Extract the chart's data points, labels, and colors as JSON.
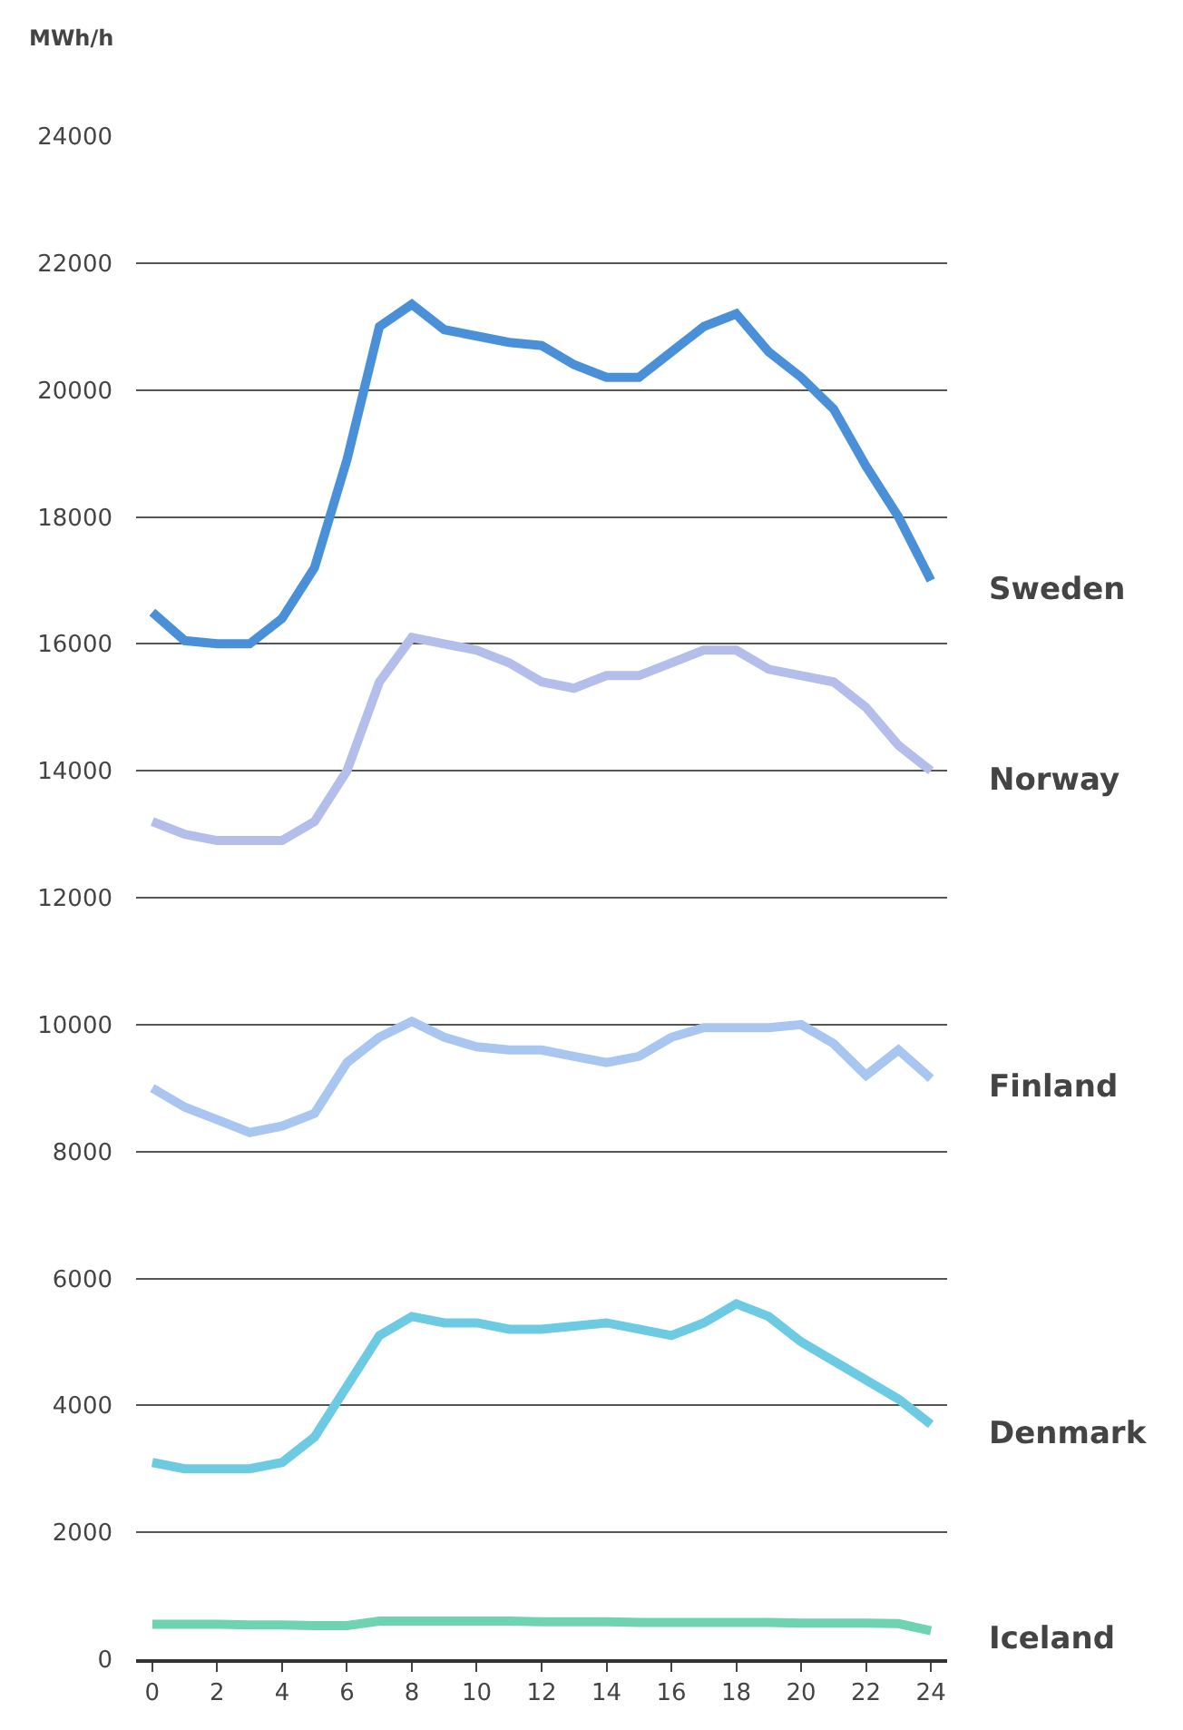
{
  "chart_data": {
    "type": "line",
    "ylabel": "MWh/h",
    "x": [
      0,
      1,
      2,
      3,
      4,
      5,
      6,
      7,
      8,
      9,
      10,
      11,
      12,
      13,
      14,
      15,
      16,
      17,
      18,
      19,
      20,
      21,
      22,
      23,
      24
    ],
    "series": [
      {
        "name": "Sweden",
        "color": "#4a90d9",
        "values": [
          16500,
          16050,
          16000,
          16000,
          16400,
          17200,
          18900,
          21000,
          21350,
          20950,
          20850,
          20750,
          20700,
          20400,
          20200,
          20200,
          20600,
          21000,
          21200,
          20600,
          20200,
          19700,
          18800,
          18000,
          17000
        ]
      },
      {
        "name": "Norway",
        "color": "#b3bfea",
        "values": [
          13200,
          13000,
          12900,
          12900,
          12900,
          13200,
          14000,
          15400,
          16100,
          16000,
          15900,
          15700,
          15400,
          15300,
          15500,
          15500,
          15700,
          15900,
          15900,
          15600,
          15500,
          15400,
          15000,
          14400,
          14000
        ]
      },
      {
        "name": "Finland",
        "color": "#a9c6f0",
        "values": [
          9000,
          8700,
          8500,
          8300,
          8400,
          8600,
          9400,
          9800,
          10050,
          9800,
          9650,
          9600,
          9600,
          9500,
          9400,
          9500,
          9800,
          9950,
          9950,
          9950,
          10000,
          9700,
          9200,
          9600,
          9150
        ]
      },
      {
        "name": "Denmark",
        "color": "#6ccbe3",
        "values": [
          3100,
          3000,
          3000,
          3000,
          3100,
          3500,
          4300,
          5100,
          5400,
          5300,
          5300,
          5200,
          5200,
          5250,
          5300,
          5200,
          5100,
          5300,
          5600,
          5400,
          5000,
          4700,
          4400,
          4100,
          3700
        ]
      },
      {
        "name": "Iceland",
        "color": "#6dd3b0",
        "values": [
          550,
          550,
          550,
          540,
          540,
          530,
          530,
          600,
          600,
          600,
          600,
          600,
          590,
          590,
          590,
          580,
          580,
          580,
          580,
          580,
          570,
          570,
          570,
          560,
          450
        ]
      }
    ],
    "xlim": [
      -0.5,
      24.5
    ],
    "xticks": [
      0,
      2,
      4,
      6,
      8,
      10,
      12,
      14,
      16,
      18,
      20,
      22,
      24
    ],
    "ylim": [
      0,
      24000
    ],
    "yticks": [
      0,
      2000,
      4000,
      6000,
      8000,
      10000,
      12000,
      14000,
      16000,
      18000,
      20000,
      22000,
      24000
    ],
    "grid": "y",
    "legend": false,
    "marker": "none",
    "line_style": "solid"
  }
}
